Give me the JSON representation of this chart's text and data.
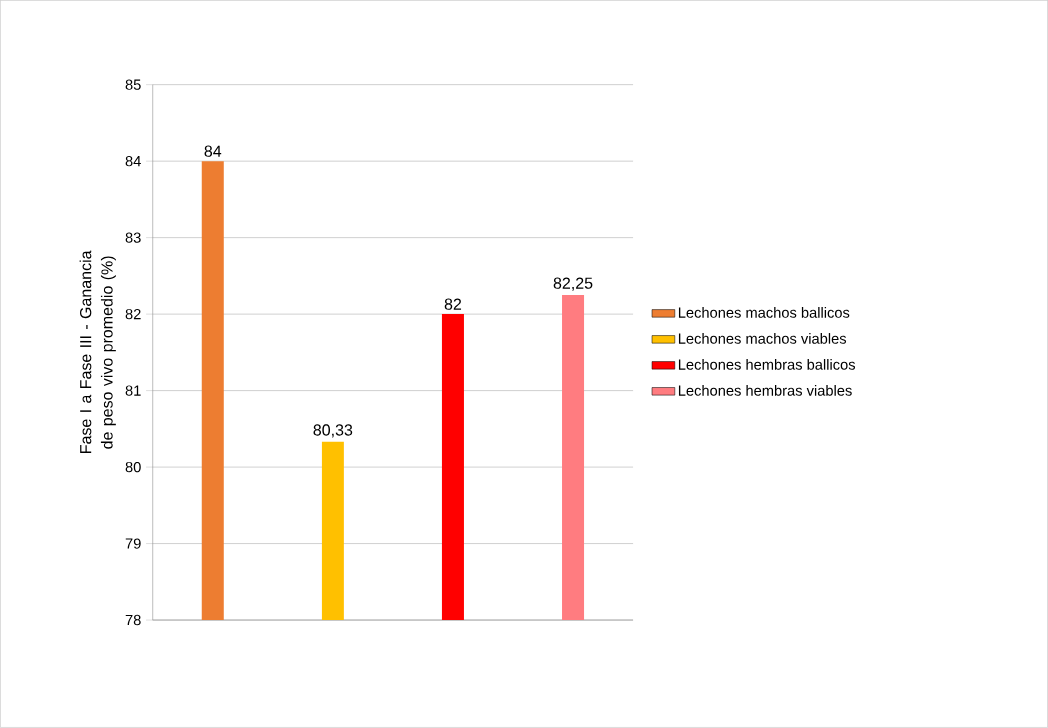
{
  "chart_data": {
    "type": "bar",
    "ylabel": "Fase I a  Fase III -  Ganancia de peso vivo promedio (%)",
    "categories": [
      null,
      null,
      null,
      null
    ],
    "series": [
      {
        "name": "Lechones machos ballicos",
        "color": "#ed7d31",
        "values": [
          84,
          null,
          null,
          null
        ],
        "value_labels": [
          "84",
          null,
          null,
          null
        ]
      },
      {
        "name": "Lechones machos viables",
        "color": "#ffc000",
        "values": [
          null,
          80.33,
          null,
          null
        ],
        "value_labels": [
          null,
          "80,33",
          null,
          null
        ]
      },
      {
        "name": "Lechones hembras ballicos",
        "color": "#ff0000",
        "values": [
          null,
          null,
          82,
          null
        ],
        "value_labels": [
          null,
          null,
          "82",
          null
        ]
      },
      {
        "name": "Lechones  hembras viables",
        "color": "#ff7c80",
        "values": [
          null,
          null,
          null,
          82.25
        ],
        "value_labels": [
          null,
          null,
          null,
          "82,25"
        ]
      }
    ],
    "ylim": [
      78,
      85
    ],
    "yticks": [
      78,
      79,
      80,
      81,
      82,
      83,
      84,
      85
    ],
    "grid": "y",
    "legend": "right"
  }
}
